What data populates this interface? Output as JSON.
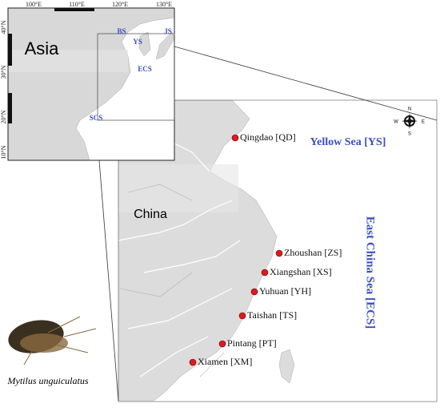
{
  "inset": {
    "lon_labels": [
      "100°E",
      "110°E",
      "120°E",
      "130°E"
    ],
    "lat_labels": [
      "40°N",
      "30°N",
      "20°N",
      "10°N"
    ],
    "region": "Asia",
    "seas": [
      "BS",
      "YS",
      "JS",
      "ECS",
      "SCS"
    ]
  },
  "main": {
    "country": "China",
    "seas": [
      "Yellow Sea [YS]",
      "East China Sea [ECS]"
    ],
    "sites": [
      "Qingdao [QD]",
      "Zhoushan [ZS]",
      "Xiangshan [XS]",
      "Yuhuan [YH]",
      "Taishan [TS]",
      "Pintang [PT]",
      "Xiamen [XM]"
    ]
  },
  "compass": [
    "N",
    "E",
    "S",
    "W"
  ],
  "caption": "Mytilus unguiculatus"
}
